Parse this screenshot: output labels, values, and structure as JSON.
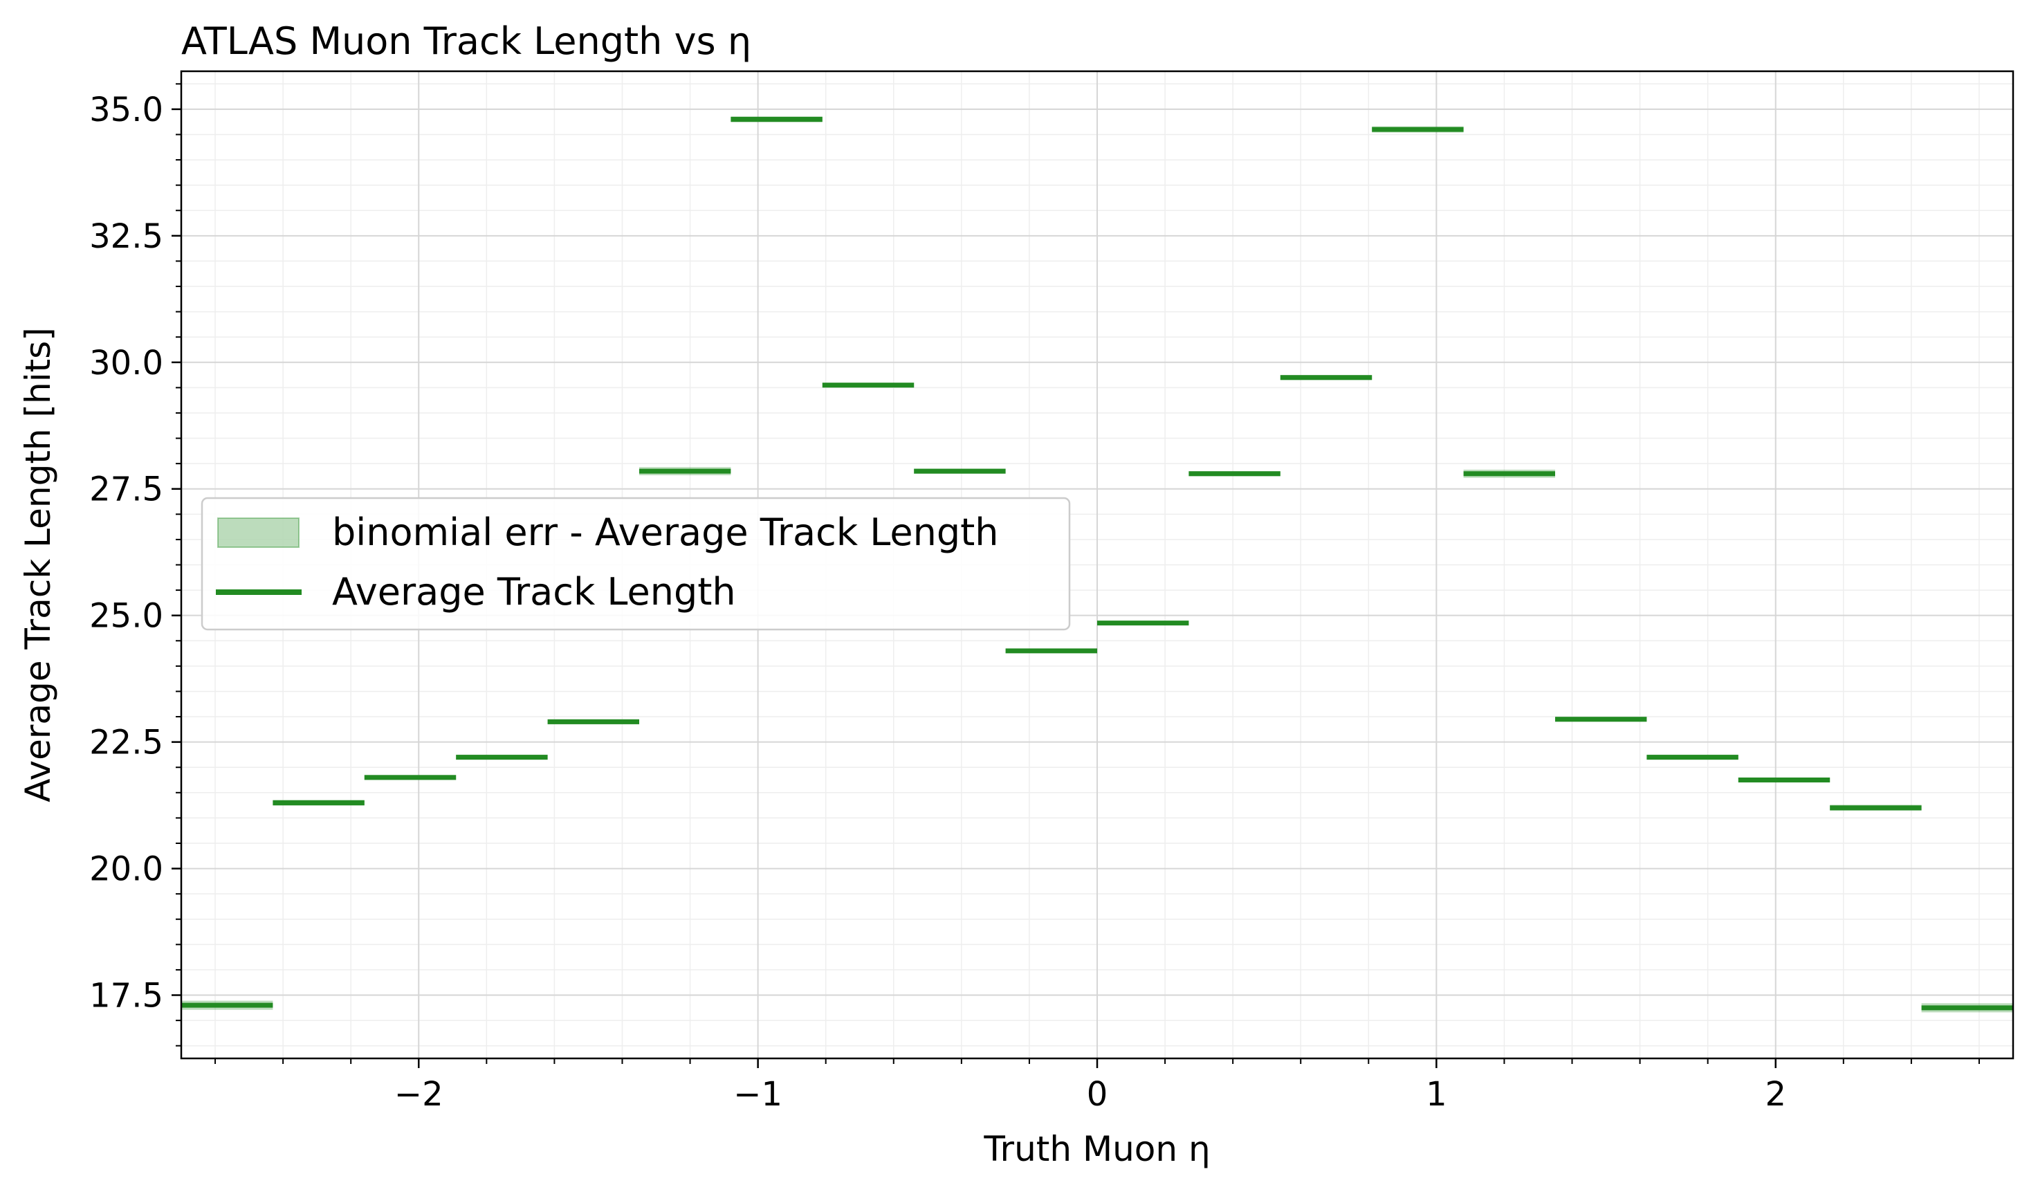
{
  "chart_data": {
    "type": "line",
    "title": "ATLAS Muon Track Length vs η",
    "xlabel": "Truth Muon η",
    "ylabel": "Average Track Length [hits]",
    "xlim": [
      -2.7,
      2.7
    ],
    "ylim": [
      16.25,
      35.75
    ],
    "xticks": [
      -2,
      -1,
      0,
      1,
      2
    ],
    "xtick_labels": [
      "−2",
      "−1",
      "0",
      "1",
      "2"
    ],
    "yticks": [
      17.5,
      20.0,
      22.5,
      25.0,
      27.5,
      30.0,
      32.5,
      35.0
    ],
    "ytick_labels": [
      "17.5",
      "20.0",
      "22.5",
      "25.0",
      "27.5",
      "30.0",
      "32.5",
      "35.0"
    ],
    "grid": true,
    "minor_grid": true,
    "legend_position": "center-left",
    "bins": [
      [
        -2.7,
        -2.43
      ],
      [
        -2.43,
        -2.16
      ],
      [
        -2.16,
        -1.89
      ],
      [
        -1.89,
        -1.62
      ],
      [
        -1.62,
        -1.35
      ],
      [
        -1.35,
        -1.08
      ],
      [
        -1.08,
        -0.81
      ],
      [
        -0.81,
        -0.54
      ],
      [
        -0.54,
        -0.27
      ],
      [
        -0.27,
        0.0
      ],
      [
        0.0,
        0.27
      ],
      [
        0.27,
        0.54
      ],
      [
        0.54,
        0.81
      ],
      [
        0.81,
        1.08
      ],
      [
        1.08,
        1.35
      ],
      [
        1.35,
        1.62
      ],
      [
        1.62,
        1.89
      ],
      [
        1.89,
        2.16
      ],
      [
        2.16,
        2.43
      ],
      [
        2.43,
        2.7
      ]
    ],
    "series": [
      {
        "name": "Average Track Length",
        "color": "#228b22",
        "values": [
          17.3,
          21.3,
          21.8,
          22.2,
          22.9,
          27.85,
          34.8,
          29.55,
          27.85,
          24.3,
          24.85,
          27.8,
          29.7,
          34.6,
          27.8,
          22.95,
          22.2,
          21.75,
          21.2,
          17.25
        ]
      },
      {
        "name": "binomial err - Average Track Length",
        "color": "#228b22",
        "opacity": 0.3,
        "errors": [
          0.09,
          0.06,
          0.05,
          0.05,
          0.05,
          0.08,
          0.06,
          0.05,
          0.05,
          0.04,
          0.04,
          0.05,
          0.05,
          0.06,
          0.08,
          0.05,
          0.05,
          0.05,
          0.06,
          0.09
        ]
      }
    ]
  },
  "legend": {
    "band_label": "binomial err - Average Track Length",
    "line_label": "Average Track Length"
  }
}
